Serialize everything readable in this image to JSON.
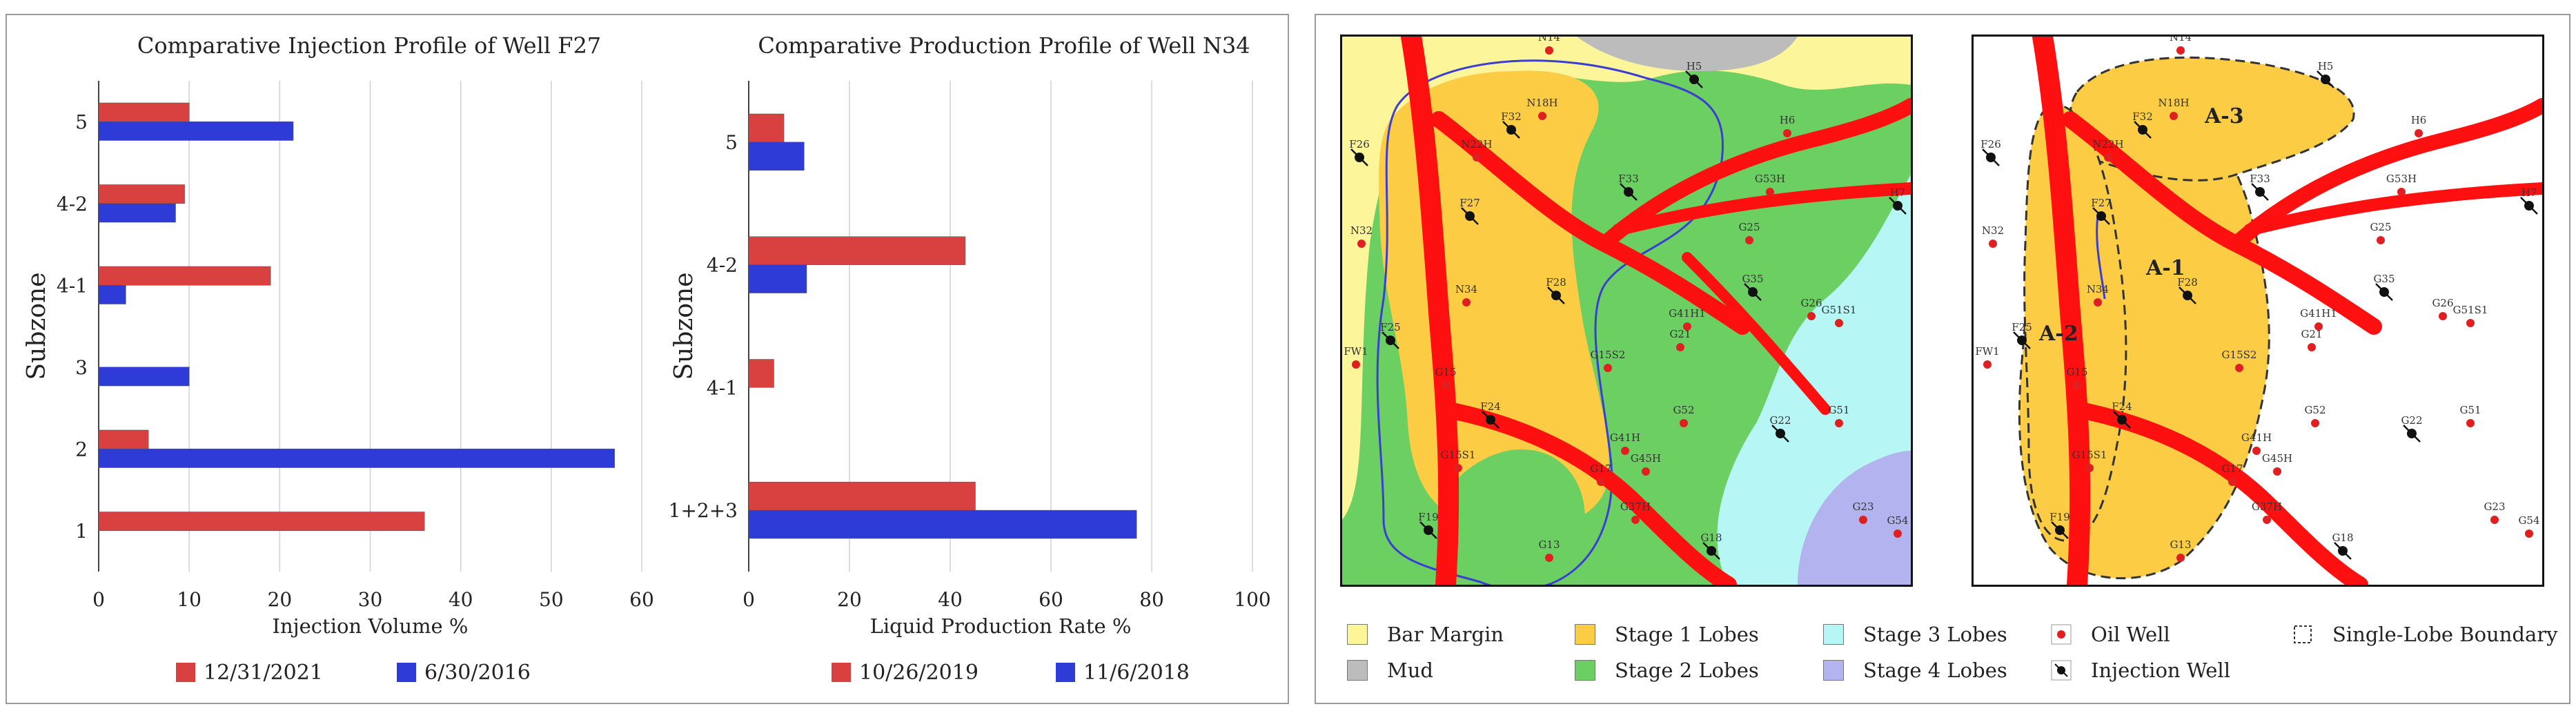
{
  "chart_data": [
    {
      "type": "bar",
      "orientation": "horizontal",
      "title": "Comparative Injection Profile of Well F27",
      "xlabel": "Injection Volume %",
      "ylabel": "Subzone",
      "categories": [
        "5",
        "4-2",
        "4-1",
        "3",
        "2",
        "1"
      ],
      "xlim": [
        0,
        60
      ],
      "xticks": [
        "0",
        "10",
        "20",
        "30",
        "40",
        "50",
        "60"
      ],
      "series": [
        {
          "name": "12/31/2021",
          "color": "#d94040",
          "values": [
            10,
            9.5,
            19,
            0,
            5.5,
            36
          ]
        },
        {
          "name": "6/30/2016",
          "color": "#2f3bd6",
          "values": [
            21.5,
            8.5,
            3,
            10,
            57,
            0
          ]
        }
      ]
    },
    {
      "type": "bar",
      "orientation": "horizontal",
      "title": "Comparative Production Profile of Well N34",
      "xlabel": "Liquid Production Rate %",
      "ylabel": "Subzone",
      "categories": [
        "5",
        "4-2",
        "4-1",
        "1+2+3"
      ],
      "xlim": [
        0,
        100
      ],
      "xticks": [
        "0",
        "20",
        "40",
        "60",
        "80",
        "100"
      ],
      "series": [
        {
          "name": "10/26/2019",
          "color": "#d94040",
          "values": [
            7,
            43,
            5,
            45
          ]
        },
        {
          "name": "11/6/2018",
          "color": "#2f3bd6",
          "values": [
            11,
            11.5,
            0,
            77
          ]
        }
      ]
    }
  ],
  "maps": {
    "well_labels": [
      "N14",
      "H5",
      "N18H",
      "F32",
      "H6",
      "N22H",
      "F26",
      "F27",
      "F33",
      "G53H",
      "H7",
      "N32",
      "G25",
      "G35",
      "G26",
      "G51S1",
      "F28",
      "N34",
      "F25",
      "G41H1",
      "G21",
      "FW1",
      "G15",
      "G15S2",
      "G52",
      "G22",
      "G51",
      "F24",
      "G15S1",
      "G41H",
      "G17",
      "G45H",
      "G23",
      "G54",
      "G37H",
      "F19",
      "G18",
      "G13"
    ],
    "lobe_labels": [
      "A-1",
      "A-2",
      "A-3"
    ]
  },
  "legend": {
    "items": [
      {
        "label": "Bar Margin",
        "color": "#fdf59a"
      },
      {
        "label": "Mud",
        "color": "#bcbcbc"
      },
      {
        "label": "Stage 1 Lobes",
        "color": "#fbcc44"
      },
      {
        "label": "Stage 2 Lobes",
        "color": "#6ccf62"
      },
      {
        "label": "Stage 3 Lobes",
        "color": "#b6f7f6"
      },
      {
        "label": "Stage 4 Lobes",
        "color": "#b3b3f0"
      },
      {
        "label": "Oil Well",
        "color": "#e02020"
      },
      {
        "label": "Injection Well",
        "color": "#111111"
      },
      {
        "label": "Single-Lobe Boundary",
        "color": "#555555"
      }
    ]
  }
}
